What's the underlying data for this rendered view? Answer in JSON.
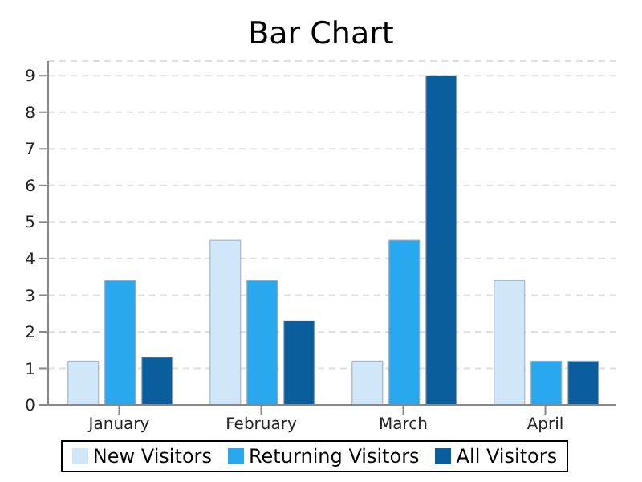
{
  "chart_data": {
    "type": "bar",
    "title": "Bar Chart",
    "categories": [
      "January",
      "February",
      "March",
      "April"
    ],
    "series": [
      {
        "name": "New Visitors",
        "color": "#cfe7f8",
        "values": [
          1.2,
          4.5,
          1.2,
          3.4
        ]
      },
      {
        "name": "Returning Visitors",
        "color": "#2aa8ef",
        "values": [
          3.4,
          3.4,
          4.5,
          1.2
        ]
      },
      {
        "name": "All Visitors",
        "color": "#0a5e9e",
        "values": [
          1.3,
          2.3,
          9,
          1.2
        ]
      }
    ],
    "ylim": [
      0,
      9.4
    ],
    "yticks": [
      0,
      1,
      2,
      3,
      4,
      5,
      6,
      7,
      8,
      9
    ],
    "grid": "y",
    "legend": "bottom"
  }
}
